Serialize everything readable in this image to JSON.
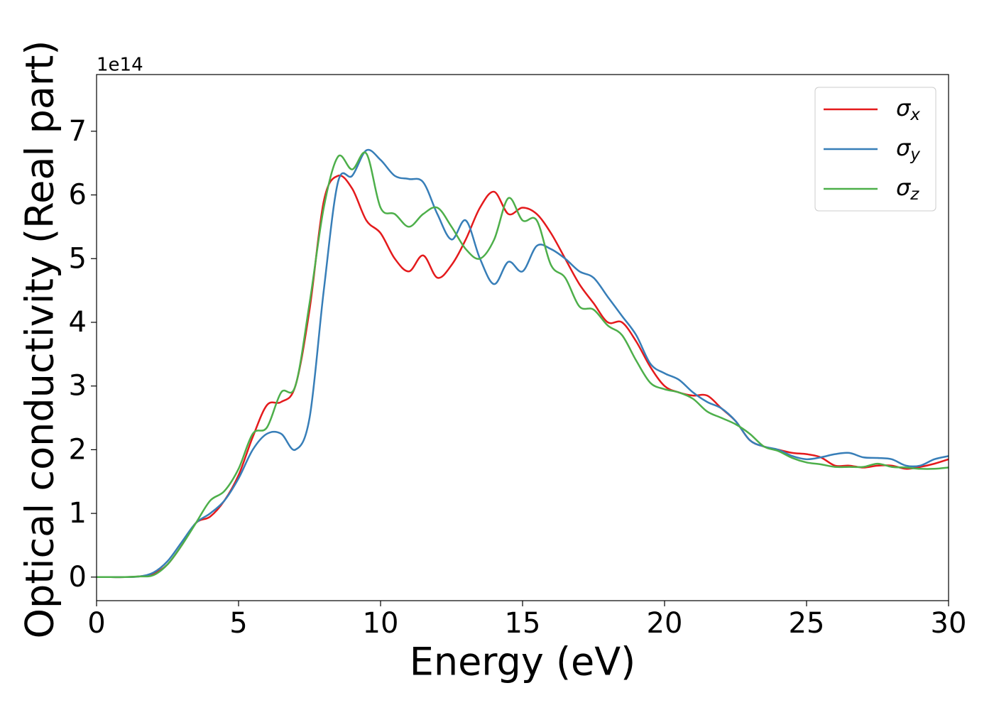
{
  "chart_data": {
    "type": "line",
    "xlabel": "Energy (eV)",
    "ylabel": "Optical conductivity (Real part)",
    "y_offset_text": "1e14",
    "x": [
      0,
      0.5,
      1,
      1.5,
      2,
      2.5,
      3,
      3.5,
      4,
      4.5,
      5,
      5.5,
      6,
      6.5,
      7,
      7.5,
      8,
      8.5,
      9,
      9.5,
      10,
      10.5,
      11,
      11.5,
      12,
      12.5,
      13,
      13.5,
      14,
      14.5,
      15,
      15.5,
      16,
      16.5,
      17,
      17.5,
      18,
      18.5,
      19,
      19.5,
      20,
      20.5,
      21,
      21.5,
      22,
      22.5,
      23,
      23.5,
      24,
      24.5,
      25,
      25.5,
      26,
      26.5,
      27,
      27.5,
      28,
      28.5,
      29,
      29.5,
      30
    ],
    "series": [
      {
        "name": "σx",
        "color": "#e41a1c",
        "values": [
          0,
          0,
          0,
          0.01,
          0.05,
          0.2,
          0.5,
          0.85,
          0.95,
          1.2,
          1.6,
          2.2,
          2.7,
          2.75,
          3.0,
          4.2,
          5.9,
          6.3,
          6.1,
          5.6,
          5.4,
          5.0,
          4.8,
          5.05,
          4.7,
          4.9,
          5.3,
          5.8,
          6.05,
          5.7,
          5.8,
          5.7,
          5.4,
          5.0,
          4.6,
          4.3,
          4.0,
          4.0,
          3.7,
          3.3,
          3.0,
          2.9,
          2.85,
          2.85,
          2.65,
          2.45,
          2.15,
          2.05,
          2.0,
          1.95,
          1.93,
          1.88,
          1.75,
          1.75,
          1.72,
          1.75,
          1.75,
          1.7,
          1.73,
          1.78,
          1.85
        ]
      },
      {
        "name": "σy",
        "color": "#377eb8",
        "values": [
          0,
          0,
          0,
          0.01,
          0.07,
          0.25,
          0.55,
          0.85,
          1.0,
          1.2,
          1.55,
          2.0,
          2.25,
          2.25,
          2.0,
          2.5,
          4.5,
          6.2,
          6.3,
          6.7,
          6.55,
          6.3,
          6.25,
          6.2,
          5.7,
          5.3,
          5.6,
          5.0,
          4.6,
          4.95,
          4.8,
          5.2,
          5.15,
          5.0,
          4.8,
          4.7,
          4.4,
          4.1,
          3.8,
          3.35,
          3.2,
          3.1,
          2.9,
          2.75,
          2.65,
          2.45,
          2.15,
          2.05,
          2.0,
          1.9,
          1.85,
          1.88,
          1.93,
          1.95,
          1.88,
          1.87,
          1.85,
          1.75,
          1.75,
          1.85,
          1.9
        ]
      },
      {
        "name": "σz",
        "color": "#4daf4a",
        "values": [
          0,
          0,
          0,
          0.01,
          0.03,
          0.2,
          0.5,
          0.85,
          1.2,
          1.35,
          1.7,
          2.25,
          2.35,
          2.9,
          3.0,
          4.3,
          5.8,
          6.6,
          6.4,
          6.65,
          5.8,
          5.7,
          5.5,
          5.7,
          5.8,
          5.5,
          5.15,
          5.0,
          5.3,
          5.95,
          5.6,
          5.6,
          4.9,
          4.7,
          4.25,
          4.2,
          3.95,
          3.8,
          3.4,
          3.05,
          2.95,
          2.9,
          2.8,
          2.6,
          2.5,
          2.4,
          2.25,
          2.05,
          1.98,
          1.87,
          1.8,
          1.77,
          1.73,
          1.73,
          1.73,
          1.78,
          1.73,
          1.72,
          1.7,
          1.7,
          1.72
        ]
      }
    ],
    "xlim": [
      0,
      30
    ],
    "xticks": [
      0,
      5,
      10,
      15,
      20,
      25,
      30
    ],
    "ylim": [
      -0.37,
      7.89
    ],
    "yticks": [
      0,
      1,
      2,
      3,
      4,
      5,
      6,
      7
    ],
    "grid": false,
    "legend": "upper right"
  }
}
